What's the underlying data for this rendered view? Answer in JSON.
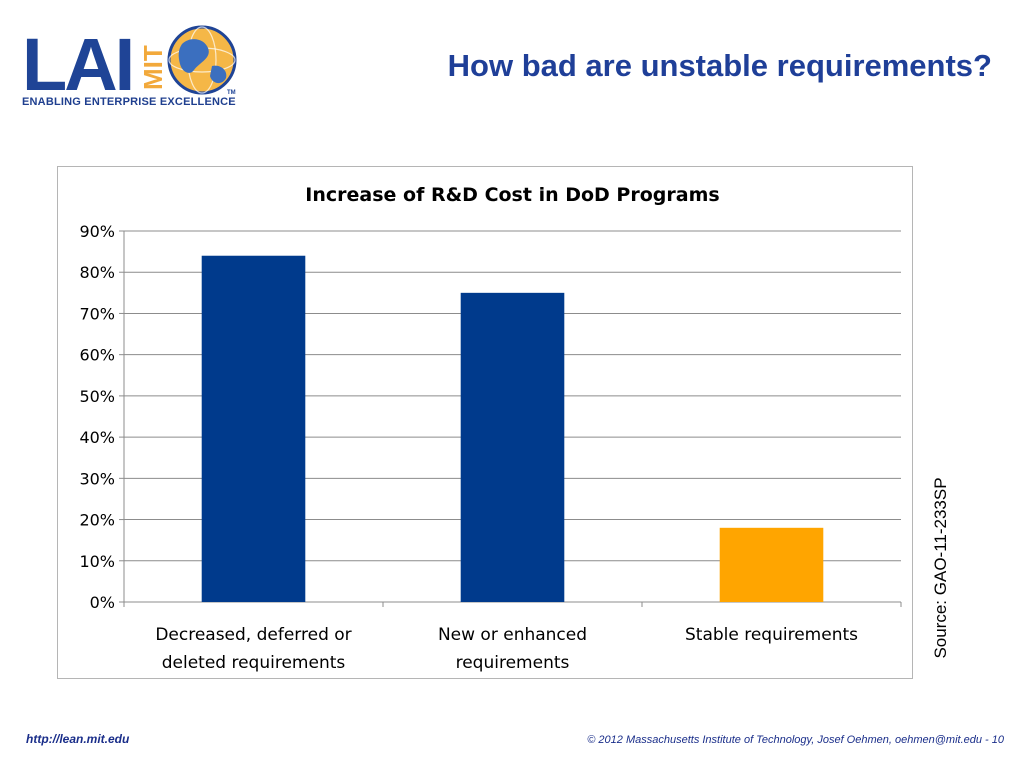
{
  "header": {
    "logo_text": "LAI",
    "logo_text_vertical": "MIT",
    "logo_tagline": "ENABLING ENTERPRISE EXCELLENCE",
    "logo_trademark": "TM",
    "title": "How bad are unstable requirements?"
  },
  "chart_data": {
    "type": "bar",
    "title": "Increase of R&D Cost in DoD Programs",
    "xlabel": "",
    "ylabel": "",
    "categories": [
      [
        "Decreased, deferred or",
        "deleted requirements"
      ],
      [
        "New or enhanced",
        "requirements"
      ],
      [
        "Stable requirements"
      ]
    ],
    "values": [
      84,
      75,
      18
    ],
    "bar_colors": [
      "#003a8c",
      "#003a8c",
      "#ffa500"
    ],
    "ylim": [
      0,
      90
    ],
    "yticks": [
      0,
      10,
      20,
      30,
      40,
      50,
      60,
      70,
      80,
      90
    ],
    "ytick_suffix": "%",
    "grid": true,
    "legend": "none"
  },
  "source_note": "Source: GAO-11-233SP",
  "footer": {
    "link": "http://lean.mit.edu",
    "copyright": "© 2012 Massachusetts Institute of Technology, Josef Oehmen, oehmen@mit.edu - 10"
  }
}
